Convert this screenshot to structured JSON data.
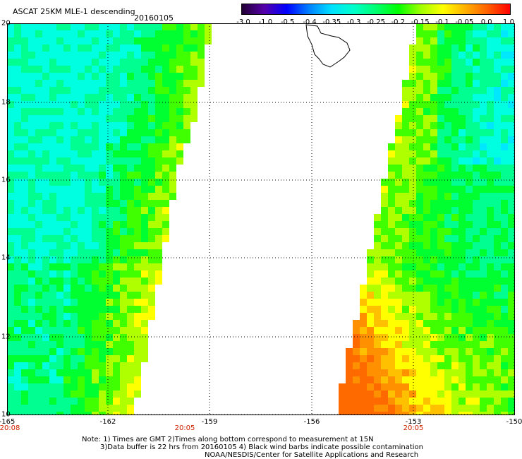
{
  "header": {
    "title": "ASCAT 25KM MLE-1 descending",
    "date": "20160105"
  },
  "colorbar": {
    "ticks": [
      "-3.0",
      "-1.0",
      "-0.5",
      "-0.4",
      "-0.35",
      "-0.3",
      "-0.25",
      "-0.2",
      "-0.15",
      "-0.1",
      "-0.05",
      "0.0",
      "1.0"
    ],
    "colors": [
      "#220033",
      "#5500aa",
      "#0000ff",
      "#0080ff",
      "#00e0ff",
      "#00ffcc",
      "#00ff70",
      "#00ff00",
      "#a0ff00",
      "#ffff00",
      "#ffb000",
      "#ff6000",
      "#ff0000"
    ]
  },
  "map": {
    "lat_labels": [
      "20",
      "18",
      "16",
      "14",
      "12",
      "10"
    ],
    "lon_labels": [
      "-165",
      "-162",
      "-159",
      "-156",
      "-153",
      "-150"
    ],
    "time_labels": [
      "20:08",
      "20:05",
      "20:05"
    ],
    "lat_range": [
      10,
      20
    ],
    "lon_range": [
      -165,
      -150
    ]
  },
  "notes": [
    "Note: 1) Times are GMT 2)Times along bottom correspond to measurement at 15N",
    "3)Data buffer is 22 hrs from 20160105 4) Black wind barbs indicate possible contamination",
    "NOAA/NESDIS/Center for Satellite Applications and Research"
  ]
}
